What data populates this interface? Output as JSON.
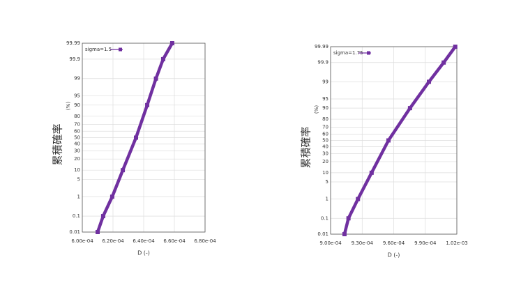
{
  "chart_data": [
    {
      "type": "probability",
      "y_label": "累積確率",
      "y_unit": "(%)",
      "x_label": "D (-)",
      "yscale": "probit",
      "grid": true,
      "legend": "top-left",
      "x": [
        0.00061,
        0.0006136,
        0.0006195,
        0.0006264,
        0.000635,
        0.0006423,
        0.000648,
        0.0006527,
        0.0006586
      ],
      "series": [
        {
          "name": "sigma=1.5",
          "color": "#7030a0",
          "values": [
            0.01,
            0.1,
            1,
            10,
            50,
            90,
            99,
            99.9,
            99.99
          ]
        }
      ],
      "xlim": [
        0.0006,
        0.00068
      ],
      "xticks": [
        {
          "value": 0.0006,
          "label": "6.00e-04"
        },
        {
          "value": 0.00062,
          "label": "6.20e-04"
        },
        {
          "value": 0.00064,
          "label": "6.40e-04"
        },
        {
          "value": 0.00066,
          "label": "6.60e-04"
        },
        {
          "value": 0.00068,
          "label": "6.80e-04"
        }
      ],
      "ylim": [
        0.01,
        99.99
      ],
      "yticks": [
        0.01,
        0.1,
        1,
        5,
        10,
        20,
        30,
        40,
        50,
        60,
        70,
        80,
        90,
        95,
        99,
        99.9,
        99.99
      ]
    },
    {
      "type": "probability",
      "y_label": "累積確率",
      "y_unit": "(%)",
      "x_label": "D (-)",
      "yscale": "probit",
      "grid": true,
      "legend": "top-left",
      "x": [
        0.0009132,
        0.000917,
        0.000926,
        0.000939,
        0.000955,
        0.0009755,
        0.0009935,
        0.0010075,
        0.0010185
      ],
      "series": [
        {
          "name": "sigma=1.75",
          "color": "#7030a0",
          "values": [
            0.01,
            0.1,
            1,
            10,
            50,
            90,
            99,
            99.9,
            99.99
          ]
        }
      ],
      "xlim": [
        0.0009,
        0.00102
      ],
      "xticks": [
        {
          "value": 0.0009,
          "label": "9.00e-04"
        },
        {
          "value": 0.00093,
          "label": "9.30e-04"
        },
        {
          "value": 0.00096,
          "label": "9.60e-04"
        },
        {
          "value": 0.00099,
          "label": "9.90e-04"
        },
        {
          "value": 0.00102,
          "label": "1.02e-03"
        }
      ],
      "ylim": [
        0.01,
        99.99
      ],
      "yticks": [
        0.01,
        0.1,
        1,
        5,
        10,
        20,
        30,
        40,
        50,
        60,
        70,
        80,
        90,
        95,
        99,
        99.9,
        99.99
      ]
    }
  ]
}
